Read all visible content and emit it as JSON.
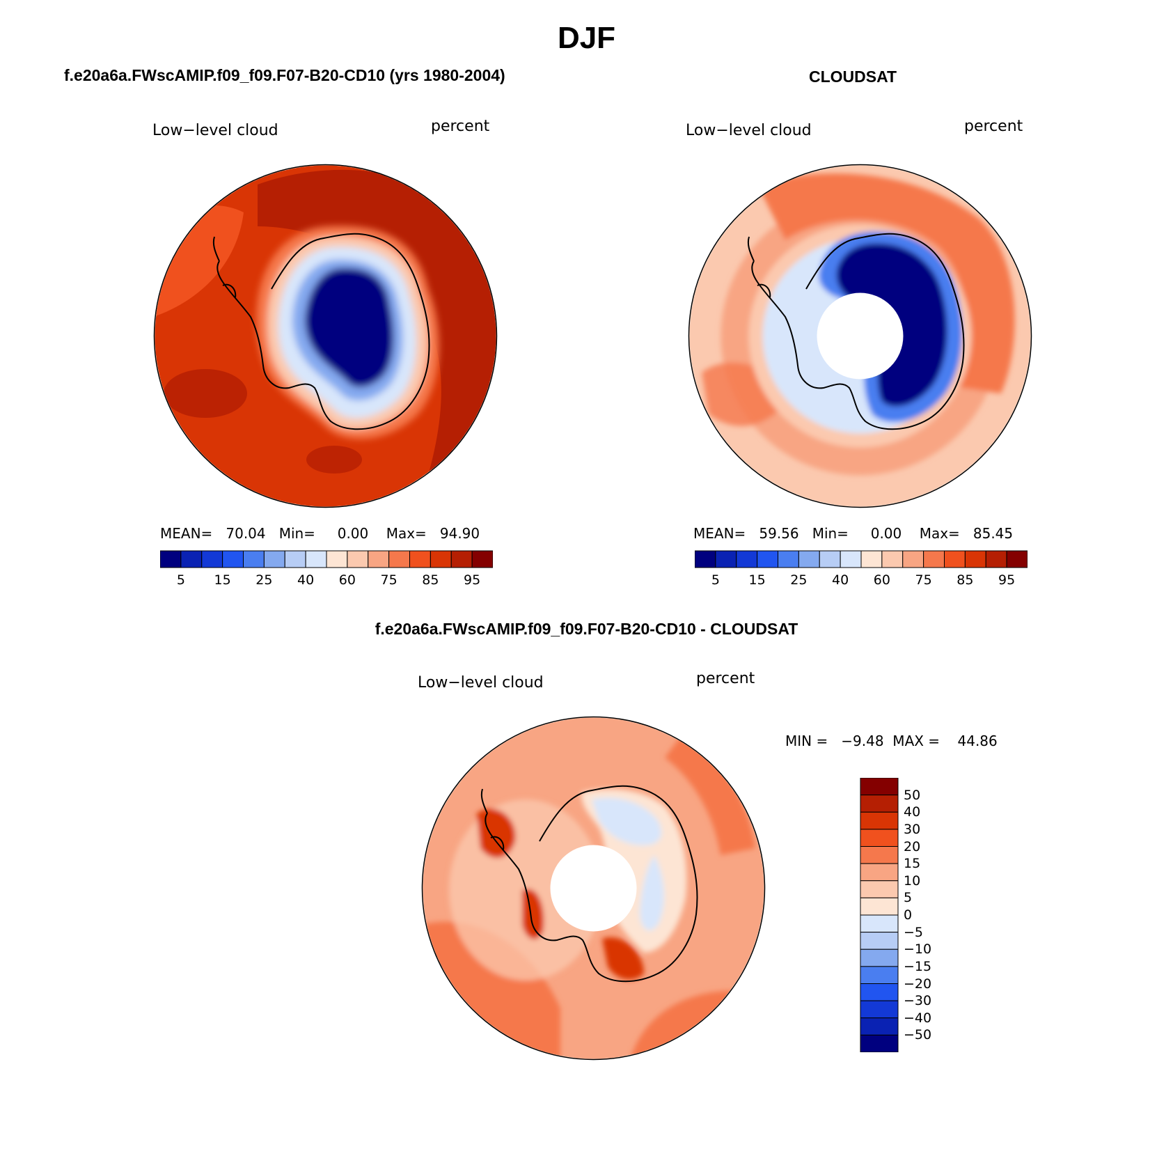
{
  "figure": {
    "season": "DJF",
    "model_title": "f.e20a6a.FWscAMIP.f09_f09.F07-B20-CD10 (yrs 1980-2004)",
    "obs_title": "CLOUDSAT",
    "diff_title": "f.e20a6a.FWscAMIP.f09_f09.F07-B20-CD10 - CLOUDSAT"
  },
  "panels": {
    "model": {
      "variable": "Low−level cloud",
      "units": "percent",
      "stats": "MEAN=   70.04   Min=     0.00    Max=   94.90"
    },
    "obs": {
      "variable": "Low−level cloud",
      "units": "percent",
      "stats": "MEAN=   59.56   Min=     0.00    Max=   85.45"
    },
    "diff": {
      "variable": "Low−level cloud",
      "units": "percent",
      "stats": "MIN =   −9.48  MAX =    44.86"
    }
  },
  "colorbar_abs": {
    "colors": [
      "#00007f",
      "#0a22b3",
      "#1339d6",
      "#2155f0",
      "#4a7ef0",
      "#84a9ef",
      "#b7cdf5",
      "#d8e6fb",
      "#fde5d4",
      "#fbc9af",
      "#f8a583",
      "#f5784c",
      "#f0511e",
      "#d93505",
      "#b51f03",
      "#840000"
    ],
    "tick_labels": [
      "5",
      "15",
      "25",
      "40",
      "60",
      "75",
      "85",
      "95"
    ]
  },
  "colorbar_diff": {
    "colors_top_to_bottom": [
      "#840000",
      "#b51f03",
      "#d93505",
      "#f0511e",
      "#f5784c",
      "#f8a583",
      "#fbc9af",
      "#fde5d4",
      "#d8e6fb",
      "#b7cdf5",
      "#84a9ef",
      "#4a7ef0",
      "#2155f0",
      "#1339d6",
      "#0a22b3",
      "#00007f"
    ],
    "tick_labels": [
      "50",
      "40",
      "30",
      "20",
      "15",
      "10",
      "5",
      "0",
      "−5",
      "−10",
      "−15",
      "−20",
      "−30",
      "−40",
      "−50"
    ]
  },
  "map_colors": {
    "model_ocean": "#d93505",
    "model_ocean_high": "#b51f03",
    "model_ocean_low": "#f0511e",
    "ice_core": "#00007f",
    "ice_mid": "#4a7ef0",
    "ice_edge": "#b7cdf5",
    "obs_ocean": "#fbc9af",
    "obs_ocean_mid": "#f8a583",
    "obs_ocean_high": "#f5784c",
    "diff_ocean": "#f8a583",
    "diff_ocean_high": "#f5784c",
    "diff_pale": "#fde5d4",
    "diff_neg": "#d8e6fb",
    "coastline": "#000000"
  }
}
